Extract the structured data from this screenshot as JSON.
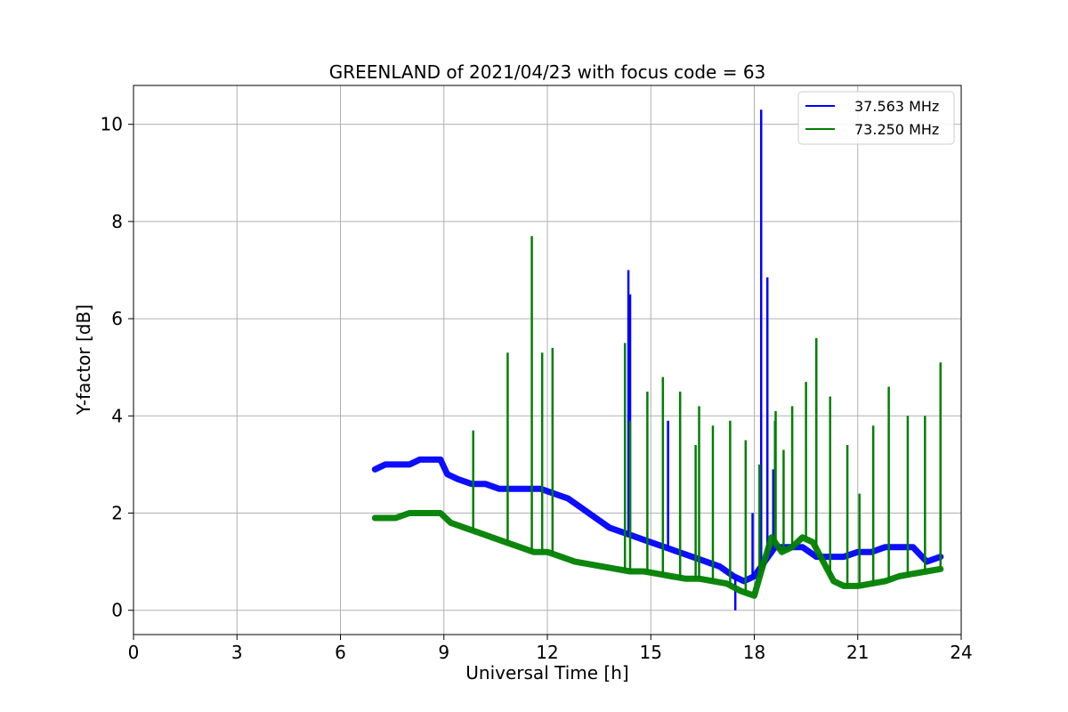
{
  "chart_data": {
    "type": "line",
    "title": "GREENLAND of 2021/04/23 with focus code = 63",
    "xlabel": "Universal Time [h]",
    "ylabel": "Y-factor [dB]",
    "xlim": [
      0,
      24
    ],
    "ylim": [
      -0.5,
      10.8
    ],
    "xticks": [
      0,
      3,
      6,
      9,
      12,
      15,
      18,
      21,
      24
    ],
    "yticks": [
      0,
      2,
      4,
      6,
      8,
      10
    ],
    "grid": true,
    "legend_position": "top-right",
    "series": [
      {
        "name": "37.563 MHz",
        "color": "#0000ff",
        "x": [
          7.0,
          7.3,
          7.6,
          8.0,
          8.3,
          8.6,
          8.9,
          9.1,
          9.4,
          9.8,
          10.2,
          10.6,
          11.0,
          11.4,
          11.8,
          12.2,
          12.6,
          13.0,
          13.4,
          13.8,
          14.2,
          14.6,
          15.0,
          15.4,
          15.8,
          16.2,
          16.6,
          17.0,
          17.4,
          17.7,
          18.0,
          18.3,
          18.6,
          19.0,
          19.4,
          19.8,
          20.2,
          20.6,
          21.0,
          21.4,
          21.8,
          22.2,
          22.6,
          23.0,
          23.4
        ],
        "y": [
          2.9,
          3.0,
          3.0,
          3.0,
          3.1,
          3.1,
          3.1,
          2.8,
          2.7,
          2.6,
          2.6,
          2.5,
          2.5,
          2.5,
          2.5,
          2.4,
          2.3,
          2.1,
          1.9,
          1.7,
          1.6,
          1.5,
          1.4,
          1.3,
          1.2,
          1.1,
          1.0,
          0.9,
          0.7,
          0.6,
          0.7,
          1.0,
          1.3,
          1.3,
          1.3,
          1.1,
          1.1,
          1.1,
          1.2,
          1.2,
          1.3,
          1.3,
          1.3,
          1.0,
          1.1
        ],
        "spikes": [
          [
            14.35,
            7.0
          ],
          [
            14.4,
            6.5
          ],
          [
            15.5,
            3.9
          ],
          [
            17.45,
            0.0
          ],
          [
            17.95,
            2.0
          ],
          [
            18.2,
            10.3
          ],
          [
            18.38,
            6.85
          ],
          [
            18.55,
            2.9
          ]
        ]
      },
      {
        "name": "73.250 MHz",
        "color": "#008000",
        "x": [
          7.0,
          7.3,
          7.6,
          8.0,
          8.3,
          8.6,
          8.9,
          9.2,
          9.6,
          10.0,
          10.4,
          10.8,
          11.2,
          11.6,
          12.0,
          12.4,
          12.8,
          13.2,
          13.6,
          14.0,
          14.4,
          14.8,
          15.2,
          15.6,
          16.0,
          16.4,
          16.8,
          17.2,
          17.6,
          18.0,
          18.2,
          18.5,
          18.8,
          19.1,
          19.4,
          19.7,
          20.0,
          20.3,
          20.6,
          21.0,
          21.4,
          21.8,
          22.2,
          22.6,
          23.0,
          23.4
        ],
        "y": [
          1.9,
          1.9,
          1.9,
          2.0,
          2.0,
          2.0,
          2.0,
          1.8,
          1.7,
          1.6,
          1.5,
          1.4,
          1.3,
          1.2,
          1.2,
          1.1,
          1.0,
          0.95,
          0.9,
          0.85,
          0.8,
          0.8,
          0.75,
          0.7,
          0.65,
          0.65,
          0.6,
          0.55,
          0.4,
          0.3,
          0.8,
          1.5,
          1.2,
          1.3,
          1.5,
          1.4,
          1.0,
          0.6,
          0.5,
          0.5,
          0.55,
          0.6,
          0.7,
          0.75,
          0.8,
          0.85
        ],
        "spikes": [
          [
            9.85,
            3.7
          ],
          [
            10.85,
            5.3
          ],
          [
            11.55,
            7.7
          ],
          [
            11.85,
            5.3
          ],
          [
            12.15,
            5.4
          ],
          [
            14.25,
            5.5
          ],
          [
            14.4,
            3.9
          ],
          [
            14.9,
            4.5
          ],
          [
            15.35,
            4.8
          ],
          [
            15.85,
            4.5
          ],
          [
            16.3,
            3.4
          ],
          [
            16.4,
            4.2
          ],
          [
            16.8,
            3.8
          ],
          [
            17.3,
            3.9
          ],
          [
            17.75,
            3.5
          ],
          [
            18.15,
            3.0
          ],
          [
            18.6,
            3.9
          ],
          [
            18.62,
            4.1
          ],
          [
            18.85,
            3.3
          ],
          [
            19.1,
            4.2
          ],
          [
            19.5,
            4.7
          ],
          [
            19.8,
            5.6
          ],
          [
            20.2,
            4.4
          ],
          [
            20.7,
            3.4
          ],
          [
            21.05,
            2.4
          ],
          [
            21.45,
            3.8
          ],
          [
            21.9,
            4.6
          ],
          [
            22.45,
            4.0
          ],
          [
            22.95,
            4.0
          ],
          [
            23.4,
            5.1
          ]
        ]
      }
    ]
  }
}
